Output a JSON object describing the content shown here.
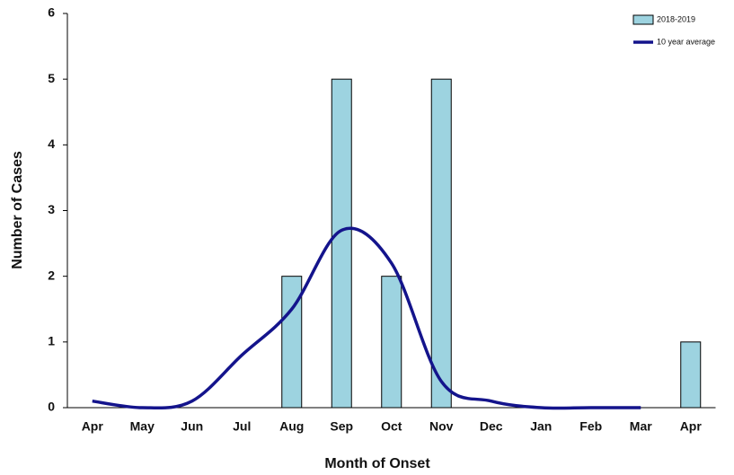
{
  "chart_data": {
    "type": "bar",
    "x_label": "Month of Onset",
    "y_label": "Number of Cases",
    "categories": [
      "Apr",
      "May",
      "Jun",
      "Jul",
      "Aug",
      "Sep",
      "Oct",
      "Nov",
      "Dec",
      "Jan",
      "Feb",
      "Mar",
      "Apr"
    ],
    "series": [
      {
        "name": "2018-2019",
        "type": "bar",
        "color": "#9dd3e0",
        "values": [
          0,
          0,
          0,
          0,
          2,
          5,
          2,
          5,
          0,
          0,
          0,
          0,
          1
        ]
      },
      {
        "name": "10 year average",
        "type": "line",
        "color": "#14148c",
        "values": [
          0.1,
          0,
          0.1,
          0.8,
          1.5,
          2.7,
          2.2,
          0.4,
          0.1,
          0,
          0,
          0,
          null
        ]
      }
    ],
    "ylim": [
      0,
      6
    ],
    "yticks": [
      0,
      1,
      2,
      3,
      4,
      5,
      6
    ],
    "grid": false,
    "legend": "top-right"
  }
}
